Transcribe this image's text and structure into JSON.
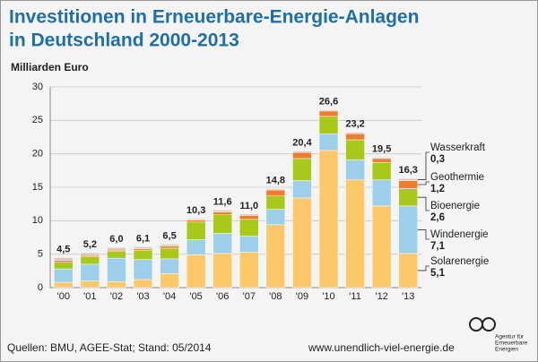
{
  "chart_data": {
    "type": "stacked_bar",
    "title": [
      "Investitionen in Erneuerbare-Energie-Anlagen",
      "in Deutschland 2000-2013"
    ],
    "y_axis_label": "Milliarden Euro",
    "categories": [
      "'00",
      "'01",
      "'02",
      "'03",
      "'04",
      "'05",
      "'06",
      "'07",
      "'08",
      "'09",
      "'10",
      "'11",
      "'12",
      "'13"
    ],
    "series": [
      {
        "name": "Solarenergie",
        "color": "#fdc86a",
        "values": [
          0.8,
          1.0,
          0.9,
          1.2,
          2.1,
          4.9,
          5.1,
          5.3,
          9.4,
          13.4,
          20.5,
          16.1,
          12.2,
          5.1
        ],
        "value_labels": [
          null,
          null,
          null,
          null,
          null,
          null,
          null,
          null,
          null,
          null,
          null,
          null,
          null,
          "5,1"
        ]
      },
      {
        "name": "Windenergie",
        "color": "#9dcfea",
        "values": [
          2.0,
          2.5,
          3.5,
          3.0,
          2.2,
          2.3,
          3.0,
          2.4,
          2.3,
          2.6,
          2.5,
          3.0,
          3.9,
          7.1
        ],
        "value_labels": [
          null,
          null,
          null,
          null,
          null,
          null,
          null,
          null,
          null,
          null,
          null,
          null,
          null,
          "7,1"
        ]
      },
      {
        "name": "Bioenergie",
        "color": "#a9c81c",
        "values": [
          1.0,
          1.1,
          1.0,
          1.4,
          1.6,
          2.6,
          2.8,
          2.5,
          2.0,
          3.3,
          2.6,
          3.0,
          2.6,
          2.6
        ],
        "value_labels": [
          null,
          null,
          null,
          null,
          null,
          null,
          null,
          null,
          null,
          null,
          null,
          null,
          null,
          "2,6"
        ]
      },
      {
        "name": "Geothermie",
        "color": "#ee7d2d",
        "values": [
          0.3,
          0.2,
          0.2,
          0.2,
          0.3,
          0.3,
          0.4,
          0.6,
          0.9,
          0.9,
          0.8,
          0.9,
          0.6,
          1.2
        ],
        "value_labels": [
          null,
          null,
          null,
          null,
          null,
          null,
          null,
          null,
          null,
          null,
          null,
          null,
          null,
          "1,2"
        ]
      },
      {
        "name": "Wasserkraft",
        "color": "#d2cbb8",
        "values": [
          0.4,
          0.4,
          0.4,
          0.3,
          0.3,
          0.2,
          0.3,
          0.2,
          0.2,
          0.2,
          0.2,
          0.2,
          0.2,
          0.3
        ],
        "value_labels": [
          null,
          null,
          null,
          null,
          null,
          null,
          null,
          null,
          null,
          null,
          null,
          null,
          null,
          "0,3"
        ]
      }
    ],
    "totals": [
      4.5,
      5.2,
      6.0,
      6.1,
      6.5,
      10.3,
      11.6,
      11.0,
      14.8,
      20.4,
      26.6,
      23.2,
      19.5,
      16.3
    ],
    "total_labels": [
      "4,5",
      "5,2",
      "6,0",
      "6,1",
      "6,5",
      "10,3",
      "11,6",
      "11,0",
      "14,8",
      "20,4",
      "26,6",
      "23,2",
      "19,5",
      "16,3"
    ],
    "ylim": [
      0,
      30
    ],
    "yticks": [
      0,
      5,
      10,
      15,
      20,
      25,
      30
    ],
    "grid": true,
    "source": "Quellen: BMU, AGEE-Stat; Stand: 05/2014",
    "website": "www.unendlich-viel-energie.de",
    "logo_text": [
      "Agentur für",
      "Erneuerbare",
      "Energien"
    ]
  }
}
